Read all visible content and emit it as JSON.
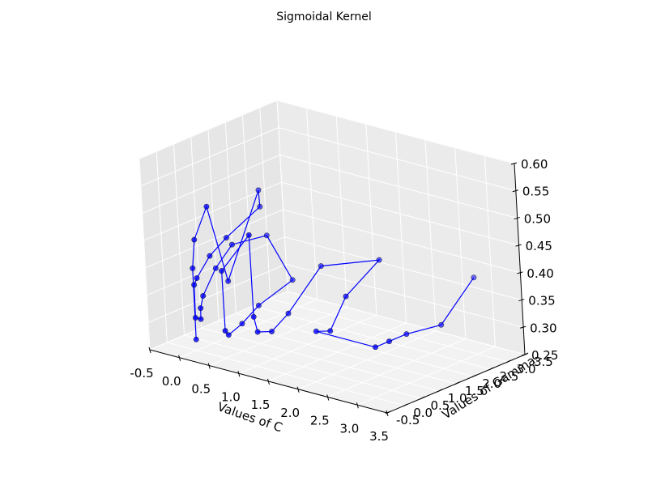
{
  "chart_data": {
    "type": "scatter",
    "title": "Sigmoidal Kernel",
    "xlabel": "Values of C",
    "ylabel": "Values of Gamma",
    "zlabel": "",
    "xlim": [
      -0.5,
      3.5
    ],
    "ylim": [
      -0.5,
      3.5
    ],
    "zlim": [
      0.25,
      0.6
    ],
    "grid": true,
    "x_ticks": [
      "-0.5",
      "0.0",
      "0.5",
      "1.0",
      "1.5",
      "2.0",
      "2.5",
      "3.0",
      "3.5"
    ],
    "y_ticks": [
      "-0.5",
      "0.0",
      "0.5",
      "1.0",
      "1.5",
      "2.0",
      "2.5",
      "3.0",
      "3.5"
    ],
    "z_ticks": [
      "0.25",
      "0.30",
      "0.35",
      "0.40",
      "0.45",
      "0.50",
      "0.55",
      "0.60"
    ],
    "series": [
      {
        "color": "#0000ff",
        "points": [
          [
            0.001,
            0.001,
            0.27
          ],
          [
            0.001,
            0.01,
            0.4
          ],
          [
            0.001,
            0.1,
            0.45
          ],
          [
            0.001,
            0.5,
            0.5
          ],
          [
            0.001,
            1.0,
            0.35
          ],
          [
            0.001,
            2.0,
            0.49
          ],
          [
            0.01,
            2.0,
            0.46
          ],
          [
            0.01,
            1.0,
            0.43
          ],
          [
            0.01,
            0.5,
            0.41
          ],
          [
            0.01,
            0.1,
            0.38
          ],
          [
            0.01,
            0.01,
            0.37
          ],
          [
            0.01,
            0.001,
            0.31
          ],
          [
            0.1,
            0.001,
            0.31
          ],
          [
            0.1,
            0.01,
            0.33
          ],
          [
            0.1,
            0.1,
            0.35
          ],
          [
            0.1,
            0.5,
            0.39
          ],
          [
            0.1,
            1.0,
            0.42
          ],
          [
            0.1,
            2.0,
            0.41
          ],
          [
            0.5,
            2.0,
            0.34
          ],
          [
            0.5,
            1.0,
            0.32
          ],
          [
            0.5,
            0.5,
            0.3
          ],
          [
            0.5,
            0.1,
            0.29
          ],
          [
            0.5,
            0.01,
            0.3
          ],
          [
            0.5,
            0.001,
            0.41
          ],
          [
            1.0,
            0.001,
            0.49
          ],
          [
            1.0,
            0.01,
            0.34
          ],
          [
            1.0,
            0.1,
            0.31
          ],
          [
            1.0,
            0.5,
            0.3
          ],
          [
            1.0,
            1.0,
            0.32
          ],
          [
            1.0,
            2.0,
            0.38
          ],
          [
            2.0,
            2.0,
            0.42
          ],
          [
            2.0,
            1.0,
            0.38
          ],
          [
            2.0,
            0.5,
            0.33
          ],
          [
            2.0,
            0.1,
            0.34
          ],
          [
            3.0,
            0.1,
            0.34
          ],
          [
            3.0,
            0.5,
            0.34
          ],
          [
            3.0,
            1.0,
            0.34
          ],
          [
            3.0,
            2.0,
            0.33
          ],
          [
            3.0,
            3.0,
            0.39
          ]
        ]
      }
    ]
  }
}
